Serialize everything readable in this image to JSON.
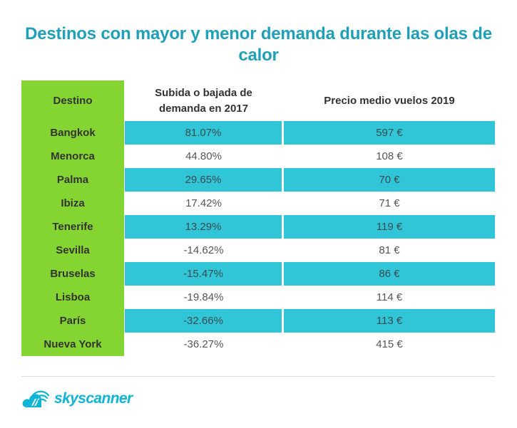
{
  "title": "Destinos con mayor y menor demanda durante las olas de calor",
  "table": {
    "headers": [
      "Destino",
      "Subida o bajada de demanda en 2017",
      "Precio medio vuelos 2019"
    ],
    "rows": [
      {
        "destino": "Bangkok",
        "demanda": "81.07%",
        "precio": "597 €"
      },
      {
        "destino": "Menorca",
        "demanda": "44.80%",
        "precio": "108 €"
      },
      {
        "destino": "Palma",
        "demanda": "29.65%",
        "precio": "70 €"
      },
      {
        "destino": "Ibiza",
        "demanda": "17.42%",
        "precio": "71 €"
      },
      {
        "destino": "Tenerife",
        "demanda": "13.29%",
        "precio": "119 €"
      },
      {
        "destino": "Sevilla",
        "demanda": "-14.62%",
        "precio": "81 €"
      },
      {
        "destino": "Bruselas",
        "demanda": "-15.47%",
        "precio": "86 €"
      },
      {
        "destino": "Lisboa",
        "demanda": "-19.84%",
        "precio": "114 €"
      },
      {
        "destino": "París",
        "demanda": "-32.66%",
        "precio": "113 €"
      },
      {
        "destino": "Nueva York",
        "demanda": "-36.27%",
        "precio": "415 €"
      }
    ]
  },
  "brand": {
    "name": "skyscanner",
    "icon": "skyscanner-cloud-icon",
    "color": "#0fb4d6"
  },
  "colors": {
    "title": "#1f9fb8",
    "destino_column": "#84d531",
    "row_highlight": "#30c6d8"
  }
}
